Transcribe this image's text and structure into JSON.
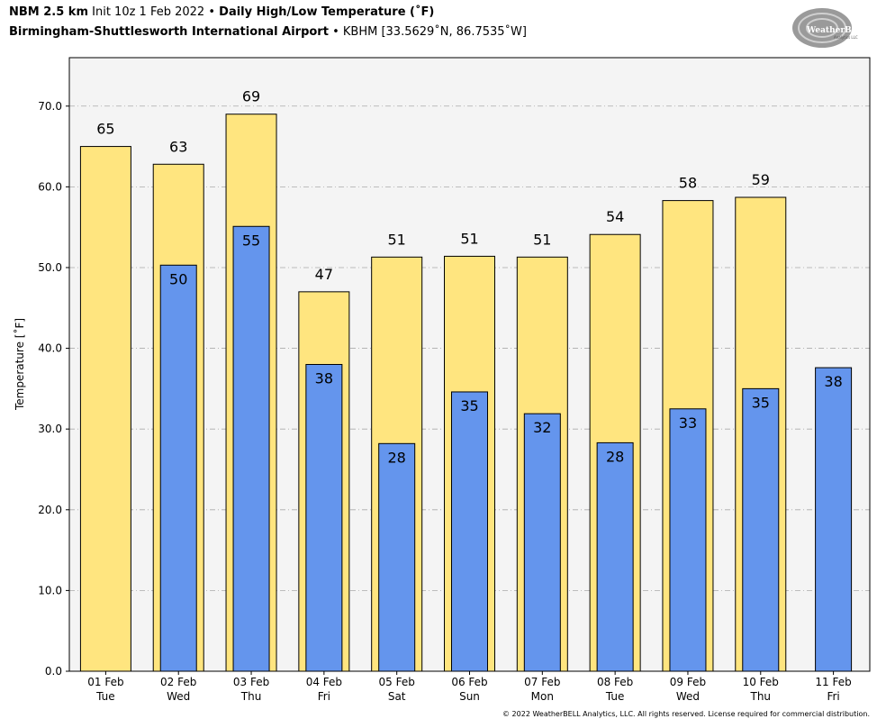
{
  "header": {
    "model": "NBM 2.5 km",
    "init": "Init 10z 1 Feb 2022",
    "bullet": "•",
    "product": "Daily High/Low Temperature (˚F)",
    "station_name": "Birmingham-Shuttlesworth International Airport",
    "station_detail": "KBHM [33.5629˚N, 86.7535˚W]"
  },
  "logo": {
    "text_main": "WeatherBELL",
    "text_sub": "Analytics LLC"
  },
  "copyright": "© 2022 WeatherBELL Analytics, LLC. All rights reserved. License required for commercial distribution.",
  "colors": {
    "high": "#FFE57F",
    "low": "#6495ED",
    "plot_bg": "#F4F4F4",
    "grid": "#AAAAAA"
  },
  "chart_data": {
    "type": "bar",
    "title": "Daily High/Low Temperature (˚F)",
    "ylabel": "Temperature [˚F]",
    "xlabel": "",
    "ylim": [
      0,
      76
    ],
    "yticks": [
      "0.0",
      "10.0",
      "20.0",
      "30.0",
      "40.0",
      "50.0",
      "60.0",
      "70.0"
    ],
    "grid": true,
    "categories": [
      {
        "date": "01 Feb",
        "day": "Tue"
      },
      {
        "date": "02 Feb",
        "day": "Wed"
      },
      {
        "date": "03 Feb",
        "day": "Thu"
      },
      {
        "date": "04 Feb",
        "day": "Fri"
      },
      {
        "date": "05 Feb",
        "day": "Sat"
      },
      {
        "date": "06 Feb",
        "day": "Sun"
      },
      {
        "date": "07 Feb",
        "day": "Mon"
      },
      {
        "date": "08 Feb",
        "day": "Tue"
      },
      {
        "date": "09 Feb",
        "day": "Wed"
      },
      {
        "date": "10 Feb",
        "day": "Thu"
      },
      {
        "date": "11 Feb",
        "day": "Fri"
      }
    ],
    "series": [
      {
        "key": "high",
        "values": [
          65,
          62.8,
          69,
          47,
          51.3,
          51.4,
          51.3,
          54.1,
          58.3,
          58.7,
          null
        ],
        "labels": [
          "65",
          "63",
          "69",
          "47",
          "51",
          "51",
          "51",
          "54",
          "58",
          "59",
          ""
        ]
      },
      {
        "key": "low",
        "values": [
          null,
          50.3,
          55.1,
          38,
          28.2,
          34.6,
          31.9,
          28.3,
          32.5,
          35,
          37.6
        ],
        "labels": [
          "",
          "50",
          "55",
          "38",
          "28",
          "35",
          "32",
          "28",
          "33",
          "35",
          "38"
        ]
      }
    ]
  }
}
